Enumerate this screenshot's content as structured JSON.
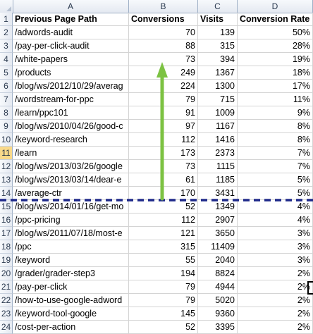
{
  "columns": [
    "A",
    "B",
    "C",
    "D"
  ],
  "selected_row": "11",
  "header": {
    "row_number": "1",
    "path": "Previous Page Path",
    "conversions": "Conversions",
    "visits": "Visits",
    "rate": "Conversion Rate"
  },
  "rows": [
    {
      "num": "2",
      "path": "/adwords-audit",
      "conv": "70",
      "visits": "139",
      "rate": "50%"
    },
    {
      "num": "3",
      "path": "/pay-per-click-audit",
      "conv": "88",
      "visits": "315",
      "rate": "28%"
    },
    {
      "num": "4",
      "path": "/white-papers",
      "conv": "73",
      "visits": "394",
      "rate": "19%"
    },
    {
      "num": "5",
      "path": "/products",
      "conv": "249",
      "visits": "1367",
      "rate": "18%"
    },
    {
      "num": "6",
      "path": "/blog/ws/2012/10/29/averag",
      "conv": "224",
      "visits": "1300",
      "rate": "17%"
    },
    {
      "num": "7",
      "path": "/wordstream-for-ppc",
      "conv": "79",
      "visits": "715",
      "rate": "11%"
    },
    {
      "num": "8",
      "path": "/learn/ppc101",
      "conv": "91",
      "visits": "1009",
      "rate": "9%"
    },
    {
      "num": "9",
      "path": "/blog/ws/2010/04/26/good-c",
      "conv": "97",
      "visits": "1167",
      "rate": "8%"
    },
    {
      "num": "10",
      "path": "/keyword-research",
      "conv": "112",
      "visits": "1416",
      "rate": "8%"
    },
    {
      "num": "11",
      "path": "/learn",
      "conv": "173",
      "visits": "2373",
      "rate": "7%"
    },
    {
      "num": "12",
      "path": "/blog/ws/2013/03/26/google",
      "conv": "73",
      "visits": "1115",
      "rate": "7%"
    },
    {
      "num": "13",
      "path": "/blog/ws/2013/03/14/dear-e",
      "conv": "61",
      "visits": "1185",
      "rate": "5%"
    },
    {
      "num": "14",
      "path": "/average-ctr",
      "conv": "170",
      "visits": "3431",
      "rate": "5%"
    },
    {
      "num": "15",
      "path": "/blog/ws/2014/01/16/get-mo",
      "conv": "52",
      "visits": "1349",
      "rate": "4%"
    },
    {
      "num": "16",
      "path": "/ppc-pricing",
      "conv": "112",
      "visits": "2907",
      "rate": "4%"
    },
    {
      "num": "17",
      "path": "/blog/ws/2011/07/18/most-e",
      "conv": "121",
      "visits": "3650",
      "rate": "3%"
    },
    {
      "num": "18",
      "path": "/ppc",
      "conv": "315",
      "visits": "11409",
      "rate": "3%"
    },
    {
      "num": "19",
      "path": "/keyword",
      "conv": "55",
      "visits": "2040",
      "rate": "3%"
    },
    {
      "num": "20",
      "path": "/grader/grader-step3",
      "conv": "194",
      "visits": "8824",
      "rate": "2%"
    },
    {
      "num": "21",
      "path": "/pay-per-click",
      "conv": "79",
      "visits": "4944",
      "rate": "2%"
    },
    {
      "num": "22",
      "path": "/how-to-use-google-adword",
      "conv": "79",
      "visits": "5020",
      "rate": "2%"
    },
    {
      "num": "23",
      "path": "/keyword-tool-google",
      "conv": "145",
      "visits": "9360",
      "rate": "2%"
    },
    {
      "num": "24",
      "path": "/cost-per-action",
      "conv": "52",
      "visits": "3395",
      "rate": "2%"
    }
  ],
  "annotations": {
    "arrow_color": "#7cc242",
    "cutoff_line_color": "#1f2a8a",
    "cutoff_after_row": "14"
  }
}
